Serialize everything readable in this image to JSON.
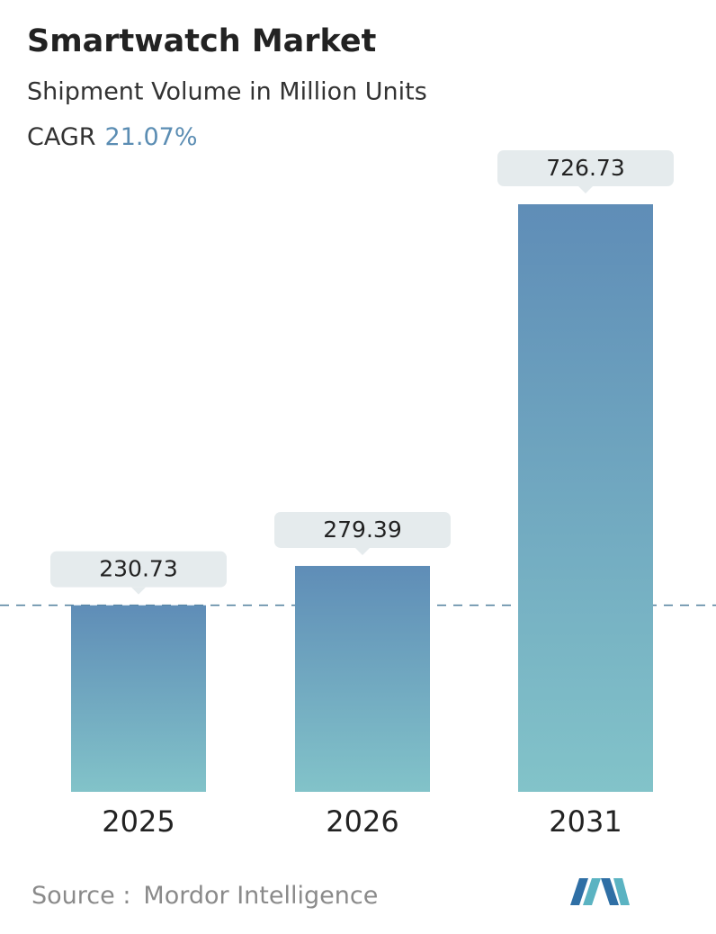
{
  "chart_data": {
    "type": "bar",
    "title": "Smartwatch Market",
    "subtitle": "Shipment Volume in Million Units",
    "cagr_label": "CAGR",
    "cagr_value": "21.07%",
    "categories": [
      "2025",
      "2026",
      "2031"
    ],
    "values": [
      230.73,
      279.39,
      726.73
    ],
    "color_top": "#5f8db7",
    "color_bottom": "#82c3c9",
    "source_label": "Source :",
    "source": "Mordor Intelligence"
  }
}
